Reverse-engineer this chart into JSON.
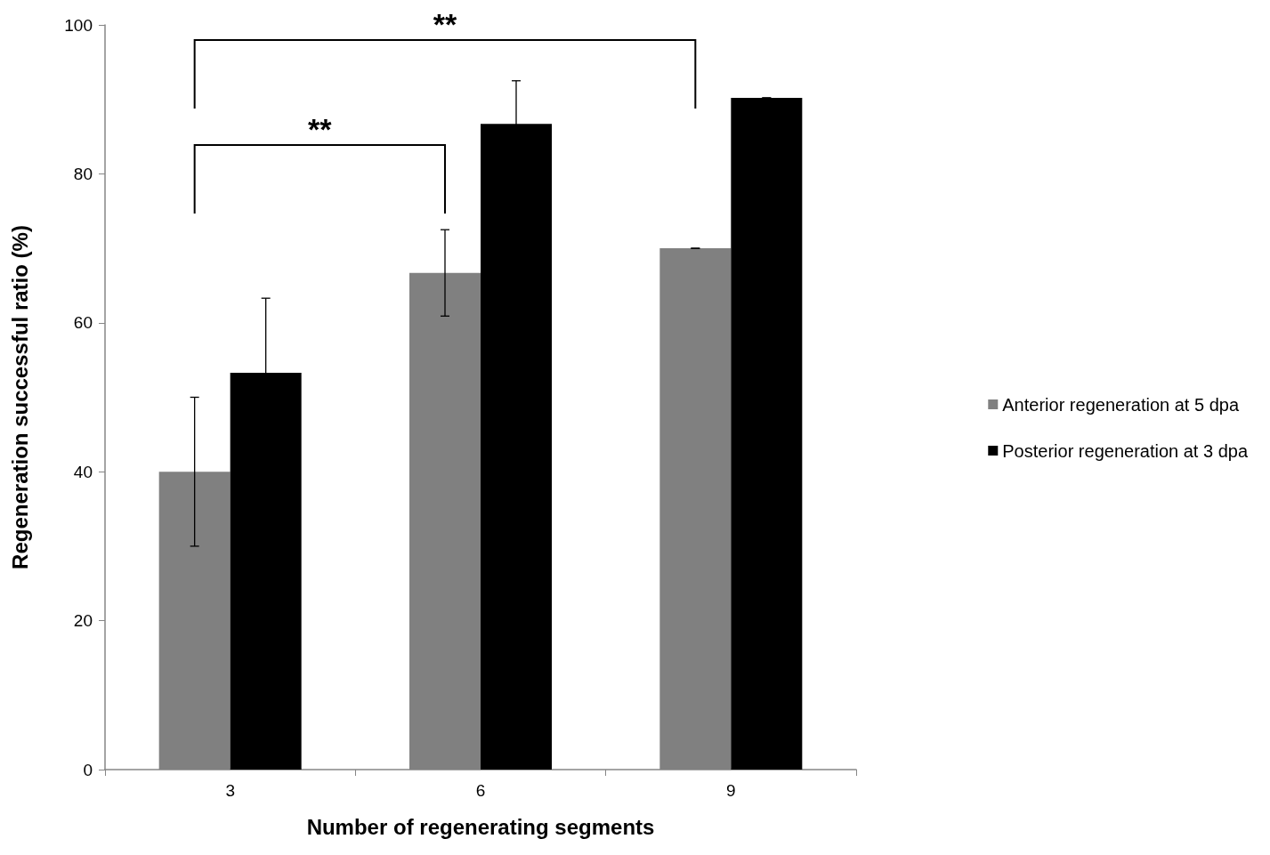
{
  "chart_data": {
    "type": "bar",
    "xlabel": "Number of regenerating segments",
    "ylabel": "Regeneration successful ratio (%)",
    "categories": [
      "3",
      "6",
      "9"
    ],
    "series": [
      {
        "name": "Anterior regeneration at 5 dpa",
        "color": "#808080",
        "values": [
          40,
          66.7,
          70
        ],
        "errors": [
          10,
          5.8,
          0
        ]
      },
      {
        "name": "Posterior regeneration at 3 dpa",
        "color": "#000000",
        "values": [
          53.3,
          86.7,
          90.2
        ],
        "errors": [
          10,
          5.8,
          0
        ]
      }
    ],
    "ylim": [
      0,
      100
    ],
    "yticks": [
      0,
      20,
      40,
      60,
      80,
      100
    ],
    "grid": false,
    "legend": "right",
    "annotations": [
      "**",
      "**"
    ]
  }
}
